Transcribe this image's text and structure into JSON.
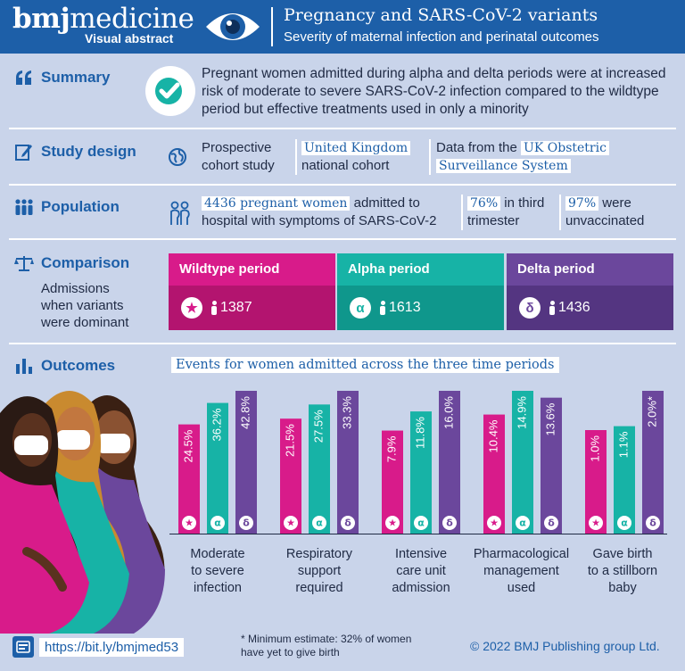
{
  "header": {
    "brand_bold": "bmj",
    "brand_rest": "medicine",
    "brand_sub": "Visual abstract",
    "title": "Pregnancy and SARS-CoV-2 variants",
    "subtitle": "Severity of maternal infection and perinatal outcomes"
  },
  "colors": {
    "header": "#1d5fa8",
    "wildtype": "#d81b8a",
    "alpha": "#17b3a6",
    "delta": "#6b479c",
    "background": "#c9d4ea"
  },
  "summary": {
    "label": "Summary",
    "text": "Pregnant women admitted during alpha and delta periods were at increased risk of moderate to severe SARS-CoV-2 infection compared to the wildtype period but effective treatments used in only a minority"
  },
  "study_design": {
    "label": "Study design",
    "col1_line1": "Prospective",
    "col1_line2": "cohort study",
    "col2_highlight": "United Kingdom",
    "col2_line2": "national cohort",
    "col3_prefix": "Data from the",
    "col3_highlight1": "UK Obstetric",
    "col3_highlight2": "Surveillance System"
  },
  "population": {
    "label": "Population",
    "col1_highlight": "4436 pregnant women",
    "col1_rest": "admitted to",
    "col1_line2": "hospital with symptoms of SARS-CoV-2",
    "col2_highlight": "76%",
    "col2_rest": "in third",
    "col2_line2": "trimester",
    "col3_highlight": "97%",
    "col3_rest": "were",
    "col3_line2": "unvaccinated"
  },
  "comparison": {
    "label": "Comparison",
    "note_line1": "Admissions",
    "note_line2": "when variants",
    "note_line3": "were dominant",
    "periods": [
      {
        "title": "Wildtype period",
        "symbol": "★",
        "count": "1387"
      },
      {
        "title": "Alpha period",
        "symbol": "α",
        "count": "1613"
      },
      {
        "title": "Delta period",
        "symbol": "δ",
        "count": "1436"
      }
    ]
  },
  "outcomes": {
    "label": "Outcomes",
    "caption": "Events for women admitted across the three time periods"
  },
  "chart_data": {
    "type": "bar",
    "title": "Events for women admitted across the three time periods",
    "categories": [
      [
        "Moderate",
        "to severe",
        "infection"
      ],
      [
        "Respiratory",
        "support",
        "required"
      ],
      [
        "Intensive",
        "care unit",
        "admission"
      ],
      [
        "Pharmacological",
        "management",
        "used"
      ],
      [
        "Gave birth",
        "to a stillborn",
        "baby"
      ]
    ],
    "series": [
      {
        "name": "Wildtype period",
        "symbol": "★",
        "color": "#d81b8a",
        "values": [
          24.5,
          21.5,
          7.9,
          10.4,
          1.0
        ],
        "labels": [
          "24.5%",
          "21.5%",
          "7.9%",
          "10.4%",
          "1.0%"
        ]
      },
      {
        "name": "Alpha period",
        "symbol": "α",
        "color": "#17b3a6",
        "values": [
          36.2,
          27.5,
          11.8,
          14.9,
          1.1
        ],
        "labels": [
          "36.2%",
          "27.5%",
          "11.8%",
          "14.9%",
          "1.1%"
        ]
      },
      {
        "name": "Delta period",
        "symbol": "δ",
        "color": "#6b479c",
        "values": [
          42.8,
          33.3,
          16.0,
          13.6,
          2.0
        ],
        "labels": [
          "42.8%",
          "33.3%",
          "16.0%",
          "13.6%",
          "2.0%*"
        ]
      }
    ],
    "scale_note": "each outcome group uses its own vertical scale"
  },
  "footer": {
    "link": "https://bit.ly/bmjmed53",
    "footnote_line1": "* Minimum estimate: 32% of women",
    "footnote_line2": "have yet to give birth",
    "copyright": "© 2022 BMJ Publishing group Ltd."
  }
}
